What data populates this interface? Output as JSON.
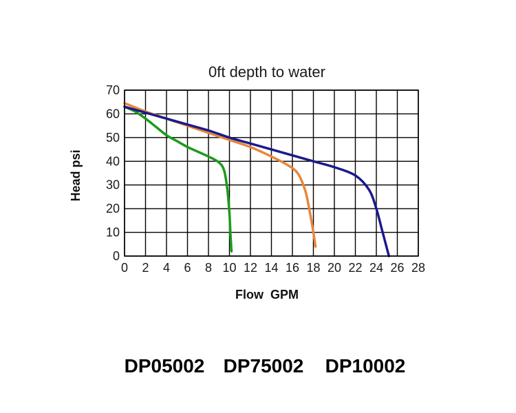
{
  "chart_data": {
    "type": "line",
    "title": "0ft depth to water",
    "xlabel": "Flow  GPM",
    "ylabel": "Head psi",
    "xlim": [
      0,
      28
    ],
    "ylim": [
      0,
      70
    ],
    "x_ticks": [
      "0",
      "2",
      "4",
      "6",
      "8",
      "10",
      "12",
      "14",
      "16",
      "18",
      "20",
      "22",
      "24",
      "26",
      "28"
    ],
    "y_ticks": [
      "70",
      "60",
      "50",
      "40",
      "30",
      "20",
      "10",
      "0"
    ],
    "grid": true,
    "series": [
      {
        "color": "#1c9a1c",
        "points": [
          [
            0,
            63
          ],
          [
            1,
            61
          ],
          [
            2,
            58
          ],
          [
            3,
            54.5
          ],
          [
            4,
            51
          ],
          [
            5,
            48.5
          ],
          [
            6,
            46
          ],
          [
            7,
            44
          ],
          [
            8,
            42
          ],
          [
            9,
            39.5
          ],
          [
            9.5,
            36
          ],
          [
            9.8,
            28
          ],
          [
            10,
            18
          ],
          [
            10.1,
            9
          ],
          [
            10.2,
            2
          ]
        ]
      },
      {
        "color": "#e8863a",
        "points": [
          [
            0,
            64.5
          ],
          [
            2,
            61
          ],
          [
            4,
            58
          ],
          [
            6,
            55
          ],
          [
            8,
            52
          ],
          [
            10,
            49
          ],
          [
            12,
            46
          ],
          [
            14,
            42
          ],
          [
            15.5,
            38.5
          ],
          [
            16.5,
            35
          ],
          [
            17.2,
            28
          ],
          [
            17.6,
            20
          ],
          [
            18,
            10
          ],
          [
            18.2,
            4
          ]
        ]
      },
      {
        "color": "#1a1a8c",
        "points": [
          [
            0,
            63
          ],
          [
            2,
            60.5
          ],
          [
            4,
            58
          ],
          [
            6,
            55.5
          ],
          [
            8,
            53
          ],
          [
            10,
            50
          ],
          [
            12,
            47.5
          ],
          [
            14,
            45
          ],
          [
            16,
            42.5
          ],
          [
            18,
            40
          ],
          [
            20,
            37.5
          ],
          [
            22,
            34
          ],
          [
            23.3,
            28
          ],
          [
            24,
            20
          ],
          [
            24.6,
            10
          ],
          [
            25.2,
            0
          ]
        ]
      }
    ]
  },
  "models": [
    "DP05002",
    "DP75002",
    "DP10002"
  ]
}
